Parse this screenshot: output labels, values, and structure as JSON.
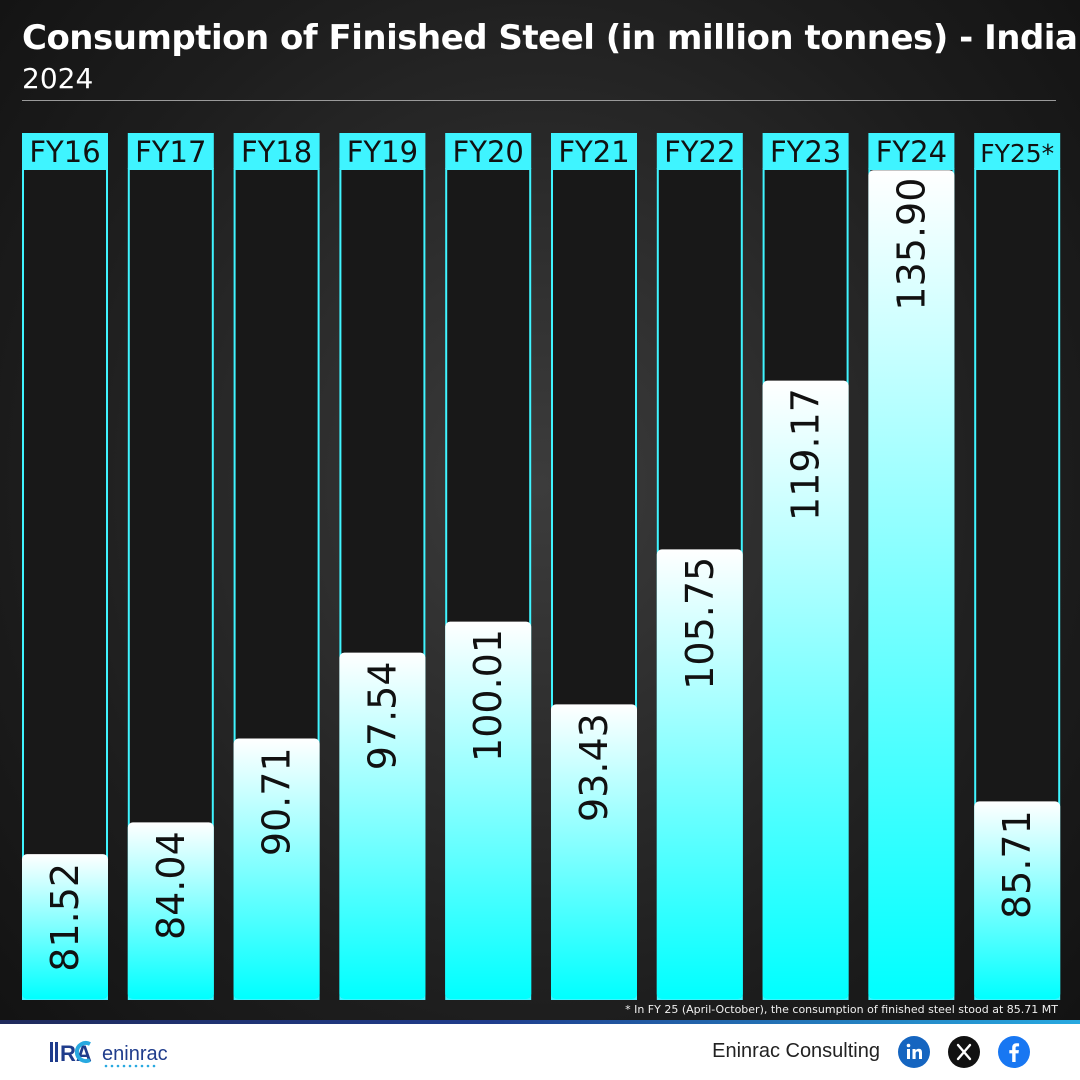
{
  "header": {
    "title": "Consumption of Finished Steel (in million tonnes) - India",
    "subtitle": "2024"
  },
  "chart_data": {
    "type": "bar",
    "categories": [
      "FY16",
      "FY17",
      "FY18",
      "FY19",
      "FY20",
      "FY21",
      "FY22",
      "FY23",
      "FY24",
      "FY25*"
    ],
    "values": [
      81.52,
      84.04,
      90.71,
      97.54,
      100.01,
      93.43,
      105.75,
      119.17,
      135.9,
      85.71
    ],
    "value_labels": [
      "81.52",
      "84.04",
      "90.71",
      "97.54",
      "100.01",
      "93.43",
      "105.75",
      "119.17",
      "135.90",
      "85.71"
    ],
    "title": "Consumption of Finished Steel (in million tonnes) - India",
    "subtitle": "2024",
    "ylim": [
      70,
      136
    ],
    "grid": false,
    "bar_gradient_top": "#ffffff",
    "bar_gradient_bottom": "#00ffff",
    "accent_color": "#3ff4ff"
  },
  "footnote": "* In FY 25 (April-October), the consumption of finished steel stood at 85.71 MT",
  "footer": {
    "logo_text": "eninrac",
    "brand_name": "Eninrac Consulting",
    "social_icons": [
      "linkedin-icon",
      "x-icon",
      "facebook-icon"
    ],
    "linkedin_color": "#1565c0",
    "x_color": "#111111",
    "facebook_color": "#1877f2"
  }
}
